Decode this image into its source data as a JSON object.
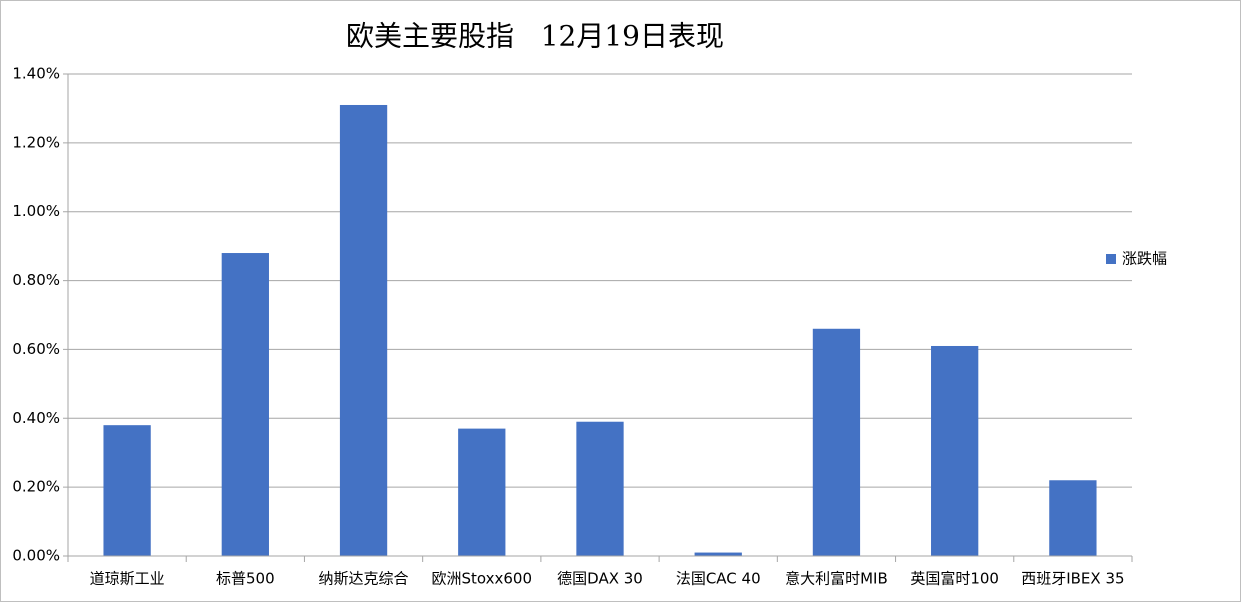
{
  "chart_data": {
    "type": "bar",
    "title": "欧美主要股指   12月19日表现",
    "categories": [
      "道琼斯工业",
      "标普500",
      "纳斯达克综合",
      "欧洲Stoxx600",
      "德国DAX 30",
      "法国CAC 40",
      "意大利富时MIB",
      "英国富时100",
      "西班牙IBEX 35"
    ],
    "series": [
      {
        "name": "涨跌幅",
        "color": "#4472c4",
        "values": [
          0.38,
          0.88,
          1.31,
          0.37,
          0.39,
          0.01,
          0.66,
          0.61,
          0.22
        ]
      }
    ],
    "ylim": [
      0,
      1.4
    ],
    "yticks": [
      {
        "value": 0,
        "label": "0.00%"
      },
      {
        "value": 0.2,
        "label": "0.20%"
      },
      {
        "value": 0.4,
        "label": "0.40%"
      },
      {
        "value": 0.6,
        "label": "0.60%"
      },
      {
        "value": 0.8,
        "label": "0.80%"
      },
      {
        "value": 1.0,
        "label": "1.00%"
      },
      {
        "value": 1.2,
        "label": "1.20%"
      },
      {
        "value": 1.4,
        "label": "1.40%"
      }
    ],
    "grid": true,
    "legend": "right"
  }
}
